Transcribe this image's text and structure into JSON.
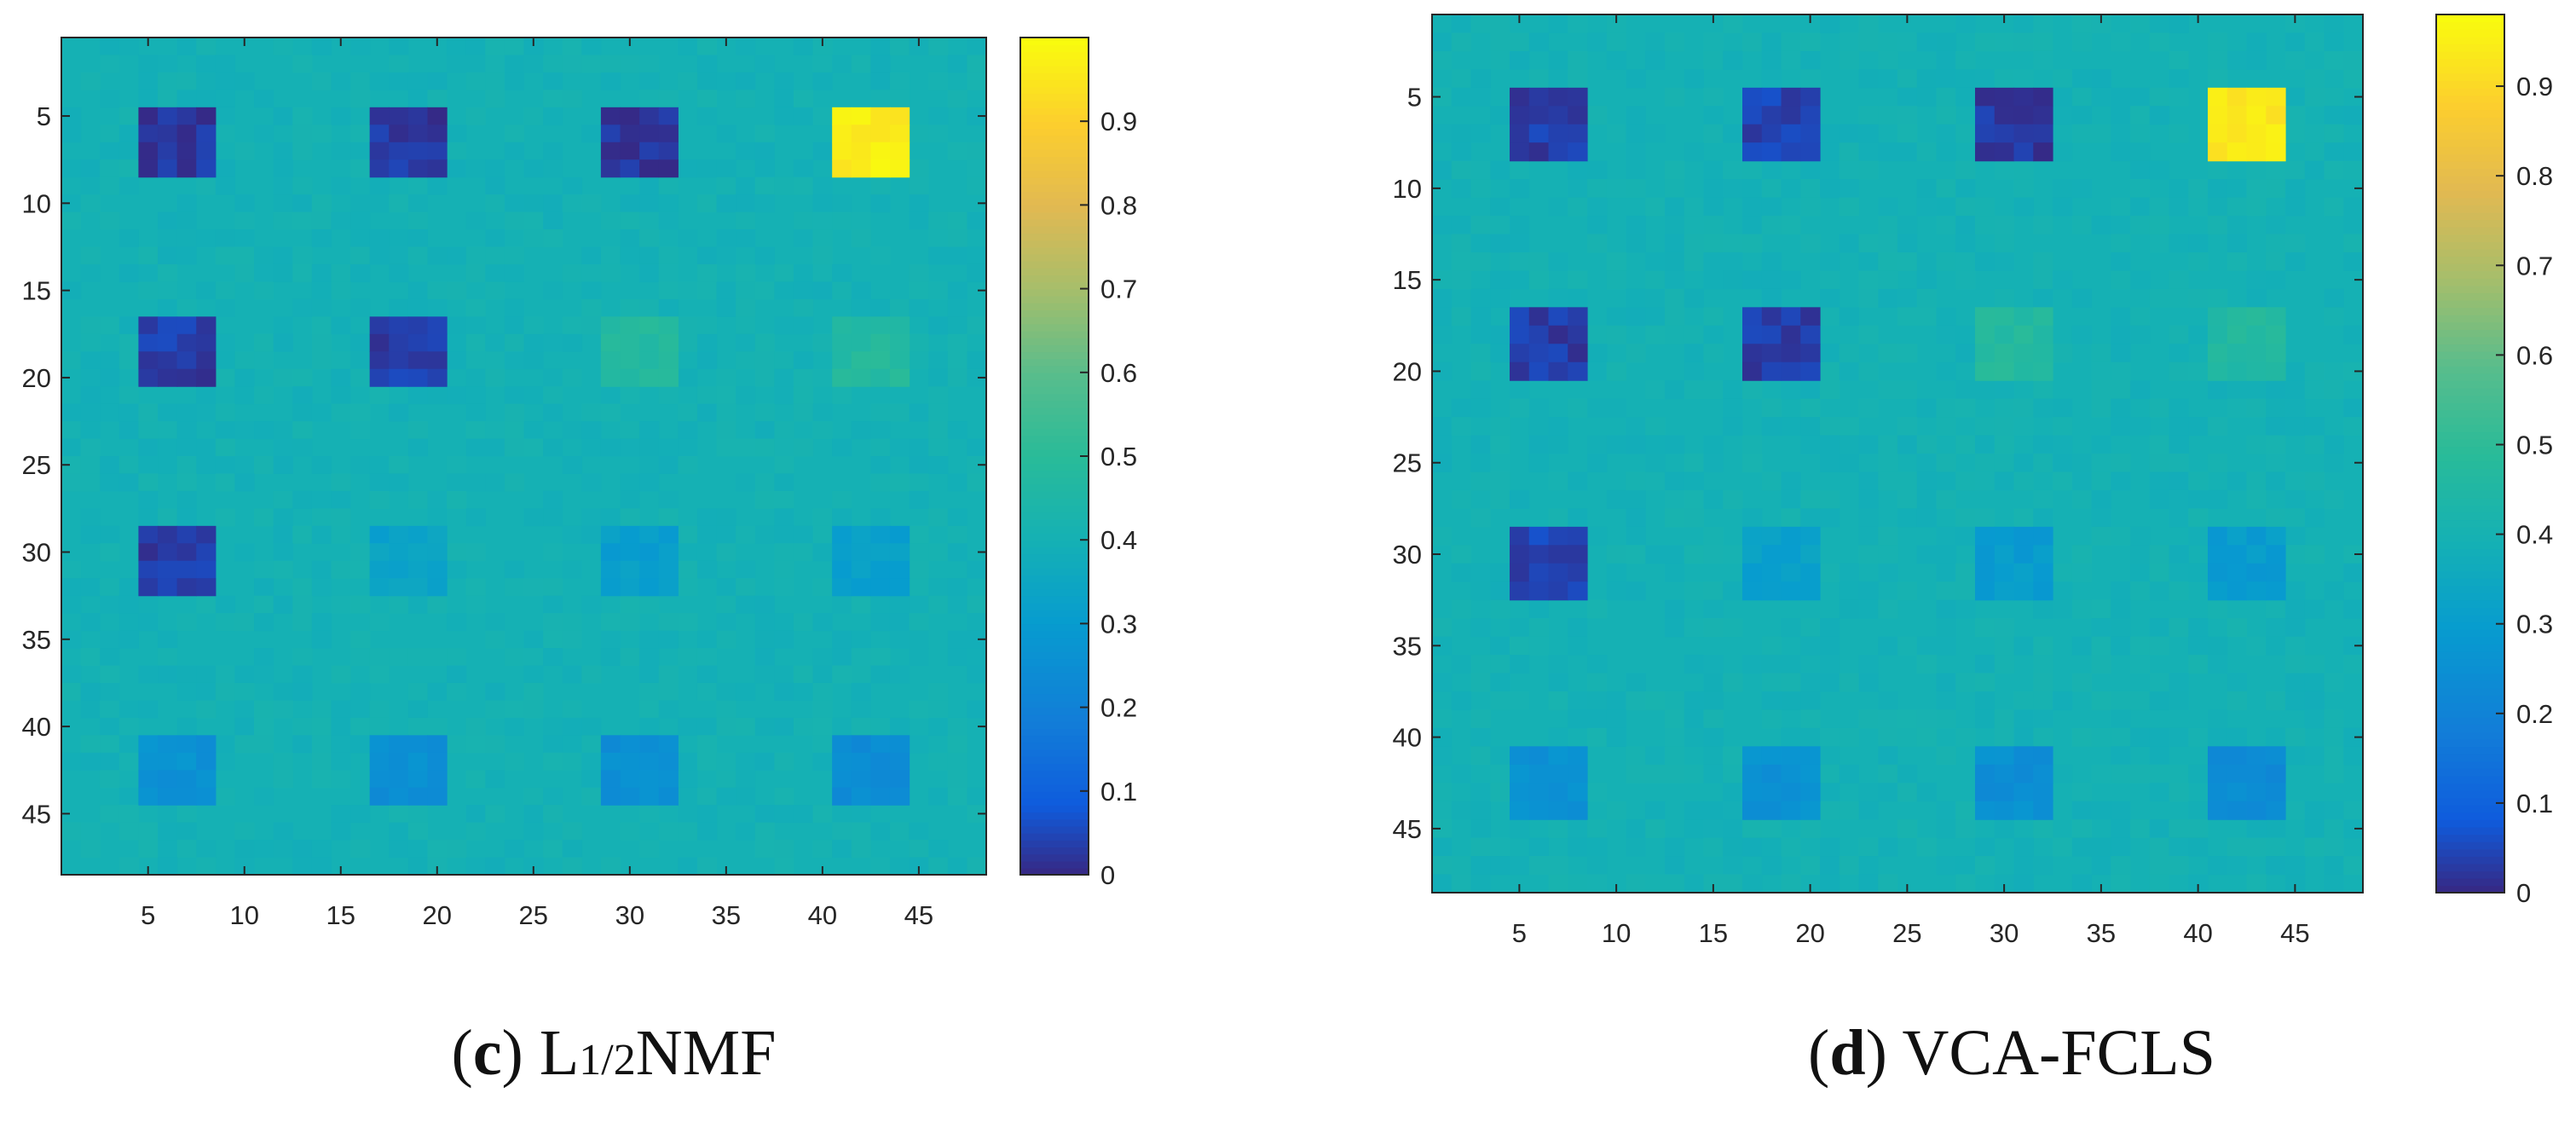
{
  "figure": {
    "panels": [
      {
        "caption_letter": "c",
        "caption_method_main": "L",
        "caption_method_sub": "1/2",
        "caption_method_rest": "NMF"
      },
      {
        "caption_letter": "d",
        "caption_method_main": "VCA-FCLS",
        "caption_method_sub": "",
        "caption_method_rest": ""
      }
    ]
  },
  "colors": {
    "background": "#20b1b3",
    "dark_block": "#352a87",
    "yellow_block": "#fae20f",
    "green_block": "#34b89e",
    "blue_block": "#1a9cd4",
    "mid_block": "#1d95db",
    "axis": "#262626",
    "tick_text": "#262626"
  },
  "chart_data": [
    {
      "type": "heatmap",
      "title": "(c) L1/2NMF",
      "xlabel": "",
      "ylabel": "",
      "xlim": [
        0.5,
        48.5
      ],
      "ylim": [
        0.5,
        48.5
      ],
      "x_ticks": [
        5,
        10,
        15,
        20,
        25,
        30,
        35,
        40,
        45
      ],
      "y_ticks": [
        5,
        10,
        15,
        20,
        25,
        30,
        35,
        40,
        45
      ],
      "colormap": "parula",
      "colorbar_range": [
        0,
        1
      ],
      "colorbar_ticks": [
        0,
        0.1,
        0.2,
        0.3,
        0.4,
        0.5,
        0.6,
        0.7,
        0.8,
        0.9
      ],
      "background_value": 0.4,
      "blocks": [
        {
          "row": 1,
          "col": 1,
          "x_range": [
            5,
            8
          ],
          "y_range": [
            5,
            8
          ],
          "value": 0.02
        },
        {
          "row": 1,
          "col": 2,
          "x_range": [
            17,
            20
          ],
          "y_range": [
            5,
            8
          ],
          "value": 0.02
        },
        {
          "row": 1,
          "col": 3,
          "x_range": [
            29,
            32
          ],
          "y_range": [
            5,
            8
          ],
          "value": 0.02
        },
        {
          "row": 1,
          "col": 4,
          "x_range": [
            41,
            44
          ],
          "y_range": [
            5,
            8
          ],
          "value": 0.97
        },
        {
          "row": 2,
          "col": 1,
          "x_range": [
            5,
            8
          ],
          "y_range": [
            17,
            20
          ],
          "value": 0.03
        },
        {
          "row": 2,
          "col": 2,
          "x_range": [
            17,
            20
          ],
          "y_range": [
            17,
            20
          ],
          "value": 0.03
        },
        {
          "row": 2,
          "col": 3,
          "x_range": [
            29,
            32
          ],
          "y_range": [
            17,
            20
          ],
          "value": 0.48
        },
        {
          "row": 2,
          "col": 4,
          "x_range": [
            41,
            44
          ],
          "y_range": [
            17,
            20
          ],
          "value": 0.48
        },
        {
          "row": 3,
          "col": 1,
          "x_range": [
            5,
            8
          ],
          "y_range": [
            29,
            32
          ],
          "value": 0.03
        },
        {
          "row": 3,
          "col": 2,
          "x_range": [
            17,
            20
          ],
          "y_range": [
            29,
            32
          ],
          "value": 0.33
        },
        {
          "row": 3,
          "col": 3,
          "x_range": [
            29,
            32
          ],
          "y_range": [
            29,
            32
          ],
          "value": 0.31
        },
        {
          "row": 3,
          "col": 4,
          "x_range": [
            41,
            44
          ],
          "y_range": [
            29,
            32
          ],
          "value": 0.32
        },
        {
          "row": 4,
          "col": 1,
          "x_range": [
            5,
            8
          ],
          "y_range": [
            41,
            44
          ],
          "value": 0.26
        },
        {
          "row": 4,
          "col": 2,
          "x_range": [
            17,
            20
          ],
          "y_range": [
            41,
            44
          ],
          "value": 0.25
        },
        {
          "row": 4,
          "col": 3,
          "x_range": [
            29,
            32
          ],
          "y_range": [
            41,
            44
          ],
          "value": 0.25
        },
        {
          "row": 4,
          "col": 4,
          "x_range": [
            41,
            44
          ],
          "y_range": [
            41,
            44
          ],
          "value": 0.24
        }
      ]
    },
    {
      "type": "heatmap",
      "title": "(d) VCA-FCLS",
      "xlabel": "",
      "ylabel": "",
      "xlim": [
        0.5,
        48.5
      ],
      "ylim": [
        0.5,
        48.5
      ],
      "x_ticks": [
        5,
        10,
        15,
        20,
        25,
        30,
        35,
        40,
        45
      ],
      "y_ticks": [
        5,
        10,
        15,
        20,
        25,
        30,
        35,
        40,
        45
      ],
      "colormap": "parula",
      "colorbar_range": [
        0,
        0.98
      ],
      "colorbar_ticks": [
        0,
        0.1,
        0.2,
        0.3,
        0.4,
        0.5,
        0.6,
        0.7,
        0.8,
        0.9
      ],
      "background_value": 0.4,
      "blocks": [
        {
          "row": 1,
          "col": 1,
          "x_range": [
            5,
            8
          ],
          "y_range": [
            5,
            8
          ],
          "value": 0.03
        },
        {
          "row": 1,
          "col": 2,
          "x_range": [
            17,
            20
          ],
          "y_range": [
            5,
            8
          ],
          "value": 0.04
        },
        {
          "row": 1,
          "col": 3,
          "x_range": [
            29,
            32
          ],
          "y_range": [
            5,
            8
          ],
          "value": 0.02
        },
        {
          "row": 1,
          "col": 4,
          "x_range": [
            41,
            44
          ],
          "y_range": [
            5,
            8
          ],
          "value": 0.96
        },
        {
          "row": 2,
          "col": 1,
          "x_range": [
            5,
            8
          ],
          "y_range": [
            17,
            20
          ],
          "value": 0.03
        },
        {
          "row": 2,
          "col": 2,
          "x_range": [
            17,
            20
          ],
          "y_range": [
            17,
            20
          ],
          "value": 0.03
        },
        {
          "row": 2,
          "col": 3,
          "x_range": [
            29,
            32
          ],
          "y_range": [
            17,
            20
          ],
          "value": 0.48
        },
        {
          "row": 2,
          "col": 4,
          "x_range": [
            41,
            44
          ],
          "y_range": [
            17,
            20
          ],
          "value": 0.47
        },
        {
          "row": 3,
          "col": 1,
          "x_range": [
            5,
            8
          ],
          "y_range": [
            29,
            32
          ],
          "value": 0.04
        },
        {
          "row": 3,
          "col": 2,
          "x_range": [
            17,
            20
          ],
          "y_range": [
            29,
            32
          ],
          "value": 0.32
        },
        {
          "row": 3,
          "col": 3,
          "x_range": [
            29,
            32
          ],
          "y_range": [
            29,
            32
          ],
          "value": 0.3
        },
        {
          "row": 3,
          "col": 4,
          "x_range": [
            41,
            44
          ],
          "y_range": [
            29,
            32
          ],
          "value": 0.3
        },
        {
          "row": 4,
          "col": 1,
          "x_range": [
            5,
            8
          ],
          "y_range": [
            41,
            44
          ],
          "value": 0.26
        },
        {
          "row": 4,
          "col": 2,
          "x_range": [
            17,
            20
          ],
          "y_range": [
            41,
            44
          ],
          "value": 0.26
        },
        {
          "row": 4,
          "col": 3,
          "x_range": [
            29,
            32
          ],
          "y_range": [
            41,
            44
          ],
          "value": 0.25
        },
        {
          "row": 4,
          "col": 4,
          "x_range": [
            41,
            44
          ],
          "y_range": [
            41,
            44
          ],
          "value": 0.24
        }
      ]
    }
  ]
}
